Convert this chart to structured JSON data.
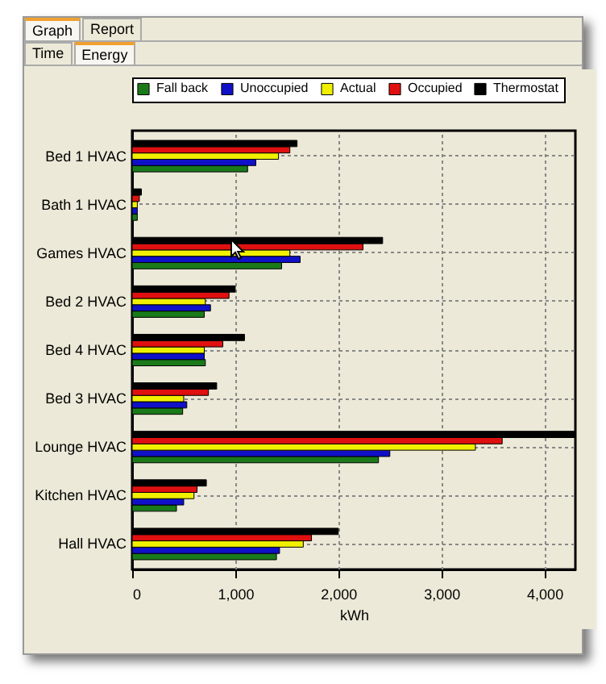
{
  "chart_data": {
    "type": "bar",
    "orientation": "horizontal",
    "xlabel": "kWh",
    "annotations": [
      "Graph",
      "Report",
      "Time",
      "Energy"
    ],
    "categories": [
      "Bed 1 HVAC",
      "Bath 1 HVAC",
      "Games HVAC",
      "Bed 2 HVAC",
      "Bed 4 HVAC",
      "Bed 3 HVAC",
      "Lounge HVAC",
      "Kitchen HVAC",
      "Hall HVAC"
    ],
    "series": [
      {
        "name": "Fall back",
        "color": "#1a7a1a",
        "values": [
          1120,
          50,
          1450,
          700,
          710,
          490,
          2390,
          430,
          1400
        ]
      },
      {
        "name": "Unoccupied",
        "color": "#1010c8",
        "values": [
          1200,
          50,
          1630,
          760,
          700,
          530,
          2500,
          500,
          1430
        ]
      },
      {
        "name": "Actual",
        "color": "#f0f000",
        "values": [
          1420,
          50,
          1530,
          710,
          700,
          500,
          3330,
          600,
          1660
        ]
      },
      {
        "name": "Occupied",
        "color": "#e01010",
        "values": [
          1530,
          70,
          2240,
          940,
          880,
          740,
          3590,
          630,
          1740
        ]
      },
      {
        "name": "Thermostat",
        "color": "#000000",
        "values": [
          1600,
          90,
          2430,
          1000,
          1090,
          820,
          4300,
          720,
          2000
        ]
      }
    ],
    "xlim": [
      0,
      4300
    ],
    "xticks": [
      {
        "value": 0,
        "label": "0"
      },
      {
        "value": 1000,
        "label": "1,000"
      },
      {
        "value": 2000,
        "label": "2,000"
      },
      {
        "value": 3000,
        "label": "3,000"
      },
      {
        "value": 4000,
        "label": "4,000"
      }
    ],
    "grid": true,
    "legend": "top"
  }
}
